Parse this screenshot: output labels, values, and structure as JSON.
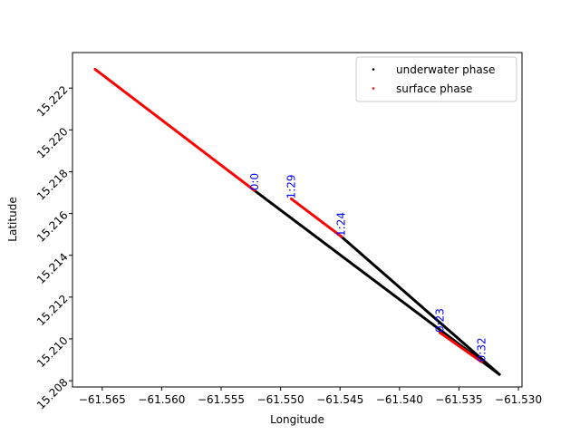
{
  "chart_data": {
    "type": "scatter",
    "title": "",
    "xlabel": "Longitude",
    "ylabel": "Latitude",
    "xlim": [
      -61.5675,
      -61.5297
    ],
    "ylim": [
      15.2077,
      15.2237
    ],
    "xticks": [
      -61.565,
      -61.56,
      -61.555,
      -61.55,
      -61.545,
      -61.54,
      -61.535,
      -61.53
    ],
    "xtick_labels": [
      "−61.565",
      "−61.560",
      "−61.555",
      "−61.550",
      "−61.545",
      "−61.540",
      "−61.535",
      "−61.530"
    ],
    "yticks": [
      15.208,
      15.21,
      15.212,
      15.214,
      15.216,
      15.218,
      15.22,
      15.222
    ],
    "ytick_labels": [
      "15.208",
      "15.210",
      "15.212",
      "15.214",
      "15.216",
      "15.218",
      "15.220",
      "15.222"
    ],
    "grid": false,
    "legend_position": "top-right",
    "series": [
      {
        "name": "underwater phase",
        "color": "#000000",
        "segments": [
          [
            [
              -61.5522,
              15.2171
            ],
            [
              -61.5316,
              15.2083
            ]
          ],
          [
            [
              -61.5449,
              15.2149
            ],
            [
              -61.5316,
              15.2083
            ]
          ]
        ]
      },
      {
        "name": "surface phase",
        "color": "#ff0000",
        "segments": [
          [
            [
              -61.5656,
              15.2229
            ],
            [
              -61.5522,
              15.2171
            ]
          ],
          [
            [
              -61.5491,
              15.2167
            ],
            [
              -61.5449,
              15.2149
            ]
          ],
          [
            [
              -61.5366,
              15.2103
            ],
            [
              -61.5331,
              15.2089
            ]
          ]
        ]
      }
    ],
    "annotations": [
      {
        "text": "0:0",
        "x": -61.5522,
        "y": 15.2171,
        "color": "#0000ff"
      },
      {
        "text": "1:29",
        "x": -61.5491,
        "y": 15.2167,
        "color": "#0000ff"
      },
      {
        "text": "1:24",
        "x": -61.5449,
        "y": 15.2149,
        "color": "#0000ff"
      },
      {
        "text": "0:23",
        "x": -61.5366,
        "y": 15.2103,
        "color": "#0000ff"
      },
      {
        "text": "0:32",
        "x": -61.5331,
        "y": 15.2089,
        "color": "#0000ff"
      }
    ]
  }
}
